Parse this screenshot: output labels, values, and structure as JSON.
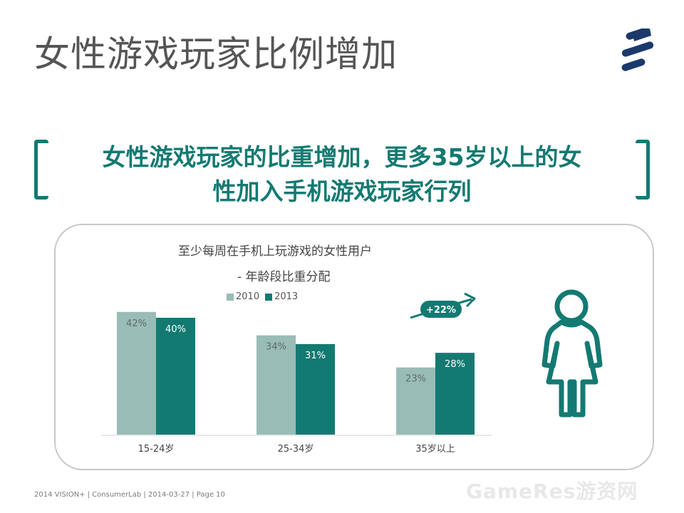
{
  "title": "女性游戏玩家比例增加",
  "headline": {
    "line1": "女性游戏玩家的比重增加，更多35岁以上的女",
    "line2": "性加入手机游戏玩家行列"
  },
  "chart_data": {
    "type": "bar",
    "title": "至少每周在手机上玩游戏的女性用户",
    "subtitle": "- 年龄段比重分配",
    "categories": [
      "15-24岁",
      "25-34岁",
      "35岁以上"
    ],
    "series": [
      {
        "name": "2010",
        "values": [
          42,
          34,
          23
        ],
        "labels": [
          "42%",
          "34%",
          "23%"
        ],
        "color": "#99bcb7"
      },
      {
        "name": "2013",
        "values": [
          40,
          31,
          28
        ],
        "labels": [
          "40%",
          "31%",
          "28%"
        ],
        "color": "#137a72"
      }
    ],
    "annotation": "+22%",
    "ylim": [
      0,
      45
    ],
    "grid": false,
    "legend_position": "top"
  },
  "footer": "2014 VISION+ | ConsumerLab | 2014-03-27 | Page 10",
  "watermark": "GameRes游资网",
  "colors": {
    "accent": "#137a72",
    "light_bar": "#99bcb7",
    "title_text": "#555555",
    "logo": "#1b3a6b"
  },
  "icons": {
    "logo": "ericsson-logo",
    "person": "female-person-icon",
    "trend": "trend-arrow-icon"
  }
}
